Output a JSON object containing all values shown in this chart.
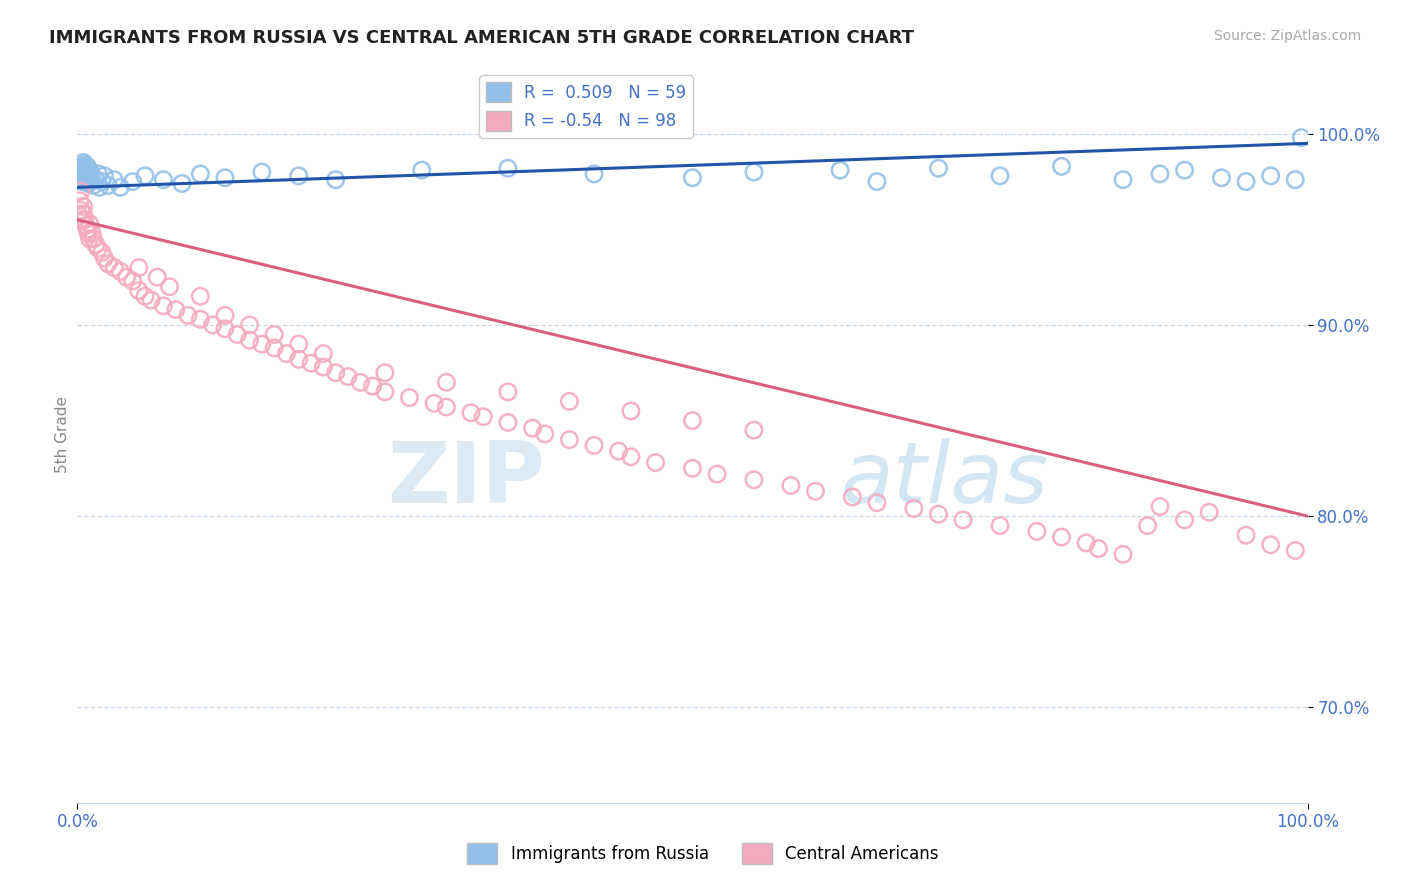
{
  "title": "IMMIGRANTS FROM RUSSIA VS CENTRAL AMERICAN 5TH GRADE CORRELATION CHART",
  "source": "Source: ZipAtlas.com",
  "ylabel": "5th Grade",
  "xlim": [
    0.0,
    100.0
  ],
  "ylim": [
    65.0,
    103.5
  ],
  "yticks": [
    70.0,
    80.0,
    90.0,
    100.0
  ],
  "ytick_labels": [
    "70.0%",
    "80.0%",
    "90.0%",
    "100.0%"
  ],
  "blue_R": 0.509,
  "blue_N": 59,
  "pink_R": -0.54,
  "pink_N": 98,
  "blue_color": "#92C0E8",
  "pink_color": "#F4AABF",
  "blue_line_color": "#2255AA",
  "pink_line_color": "#D95F7F",
  "legend_label_blue": "Immigrants from Russia",
  "legend_label_pink": "Central Americans",
  "background_color": "#FFFFFF",
  "grid_color": "#C8D8E8",
  "axis_label_color": "#4472C4",
  "title_color": "#222222",
  "blue_x": [
    0.2,
    0.3,
    0.4,
    0.4,
    0.5,
    0.5,
    0.5,
    0.6,
    0.6,
    0.6,
    0.7,
    0.7,
    0.7,
    0.8,
    0.8,
    0.8,
    0.9,
    0.9,
    1.0,
    1.0,
    1.0,
    1.1,
    1.2,
    1.3,
    1.5,
    1.7,
    1.8,
    2.0,
    2.2,
    2.5,
    3.0,
    3.5,
    4.5,
    5.5,
    7.0,
    8.5,
    10.0,
    12.0,
    15.0,
    18.0,
    21.0,
    28.0,
    35.0,
    42.0,
    50.0,
    55.0,
    62.0,
    65.0,
    70.0,
    75.0,
    80.0,
    85.0,
    88.0,
    90.0,
    93.0,
    95.0,
    97.0,
    99.0,
    99.5
  ],
  "blue_y": [
    97.8,
    98.2,
    98.0,
    97.5,
    98.3,
    98.5,
    97.9,
    98.1,
    97.6,
    98.4,
    97.8,
    98.2,
    97.5,
    98.0,
    97.7,
    98.3,
    97.9,
    97.4,
    98.1,
    97.6,
    98.0,
    97.5,
    97.8,
    97.3,
    97.6,
    97.9,
    97.2,
    97.5,
    97.8,
    97.3,
    97.6,
    97.2,
    97.5,
    97.8,
    97.6,
    97.4,
    97.9,
    97.7,
    98.0,
    97.8,
    97.6,
    98.1,
    98.2,
    97.9,
    97.7,
    98.0,
    98.1,
    97.5,
    98.2,
    97.8,
    98.3,
    97.6,
    97.9,
    98.1,
    97.7,
    97.5,
    97.8,
    97.6,
    99.8
  ],
  "pink_x": [
    0.1,
    0.2,
    0.3,
    0.3,
    0.4,
    0.5,
    0.5,
    0.6,
    0.7,
    0.8,
    0.9,
    1.0,
    1.0,
    1.2,
    1.3,
    1.5,
    1.7,
    2.0,
    2.2,
    2.5,
    3.0,
    3.5,
    4.0,
    4.5,
    5.0,
    5.5,
    6.0,
    7.0,
    8.0,
    9.0,
    10.0,
    11.0,
    12.0,
    13.0,
    14.0,
    15.0,
    16.0,
    17.0,
    18.0,
    19.0,
    20.0,
    21.0,
    22.0,
    23.0,
    24.0,
    25.0,
    27.0,
    29.0,
    30.0,
    32.0,
    33.0,
    35.0,
    37.0,
    38.0,
    40.0,
    42.0,
    44.0,
    45.0,
    47.0,
    50.0,
    52.0,
    55.0,
    58.0,
    60.0,
    63.0,
    65.0,
    68.0,
    70.0,
    72.0,
    75.0,
    78.0,
    80.0,
    82.0,
    83.0,
    85.0,
    87.0,
    88.0,
    90.0,
    92.0,
    95.0,
    97.0,
    99.0,
    5.0,
    6.5,
    7.5,
    10.0,
    12.0,
    14.0,
    16.0,
    18.0,
    20.0,
    25.0,
    30.0,
    35.0,
    40.0,
    45.0,
    50.0,
    55.0
  ],
  "pink_y": [
    95.8,
    96.5,
    96.0,
    97.0,
    95.5,
    96.2,
    95.8,
    95.5,
    95.2,
    95.0,
    94.8,
    95.3,
    94.5,
    94.8,
    94.5,
    94.2,
    94.0,
    93.8,
    93.5,
    93.2,
    93.0,
    92.8,
    92.5,
    92.3,
    91.8,
    91.5,
    91.3,
    91.0,
    90.8,
    90.5,
    90.3,
    90.0,
    89.8,
    89.5,
    89.2,
    89.0,
    88.8,
    88.5,
    88.2,
    88.0,
    87.8,
    87.5,
    87.3,
    87.0,
    86.8,
    86.5,
    86.2,
    85.9,
    85.7,
    85.4,
    85.2,
    84.9,
    84.6,
    84.3,
    84.0,
    83.7,
    83.4,
    83.1,
    82.8,
    82.5,
    82.2,
    81.9,
    81.6,
    81.3,
    81.0,
    80.7,
    80.4,
    80.1,
    79.8,
    79.5,
    79.2,
    78.9,
    78.6,
    78.3,
    78.0,
    79.5,
    80.5,
    79.8,
    80.2,
    79.0,
    78.5,
    78.2,
    93.0,
    92.5,
    92.0,
    91.5,
    90.5,
    90.0,
    89.5,
    89.0,
    88.5,
    87.5,
    87.0,
    86.5,
    86.0,
    85.5,
    85.0,
    84.5
  ]
}
